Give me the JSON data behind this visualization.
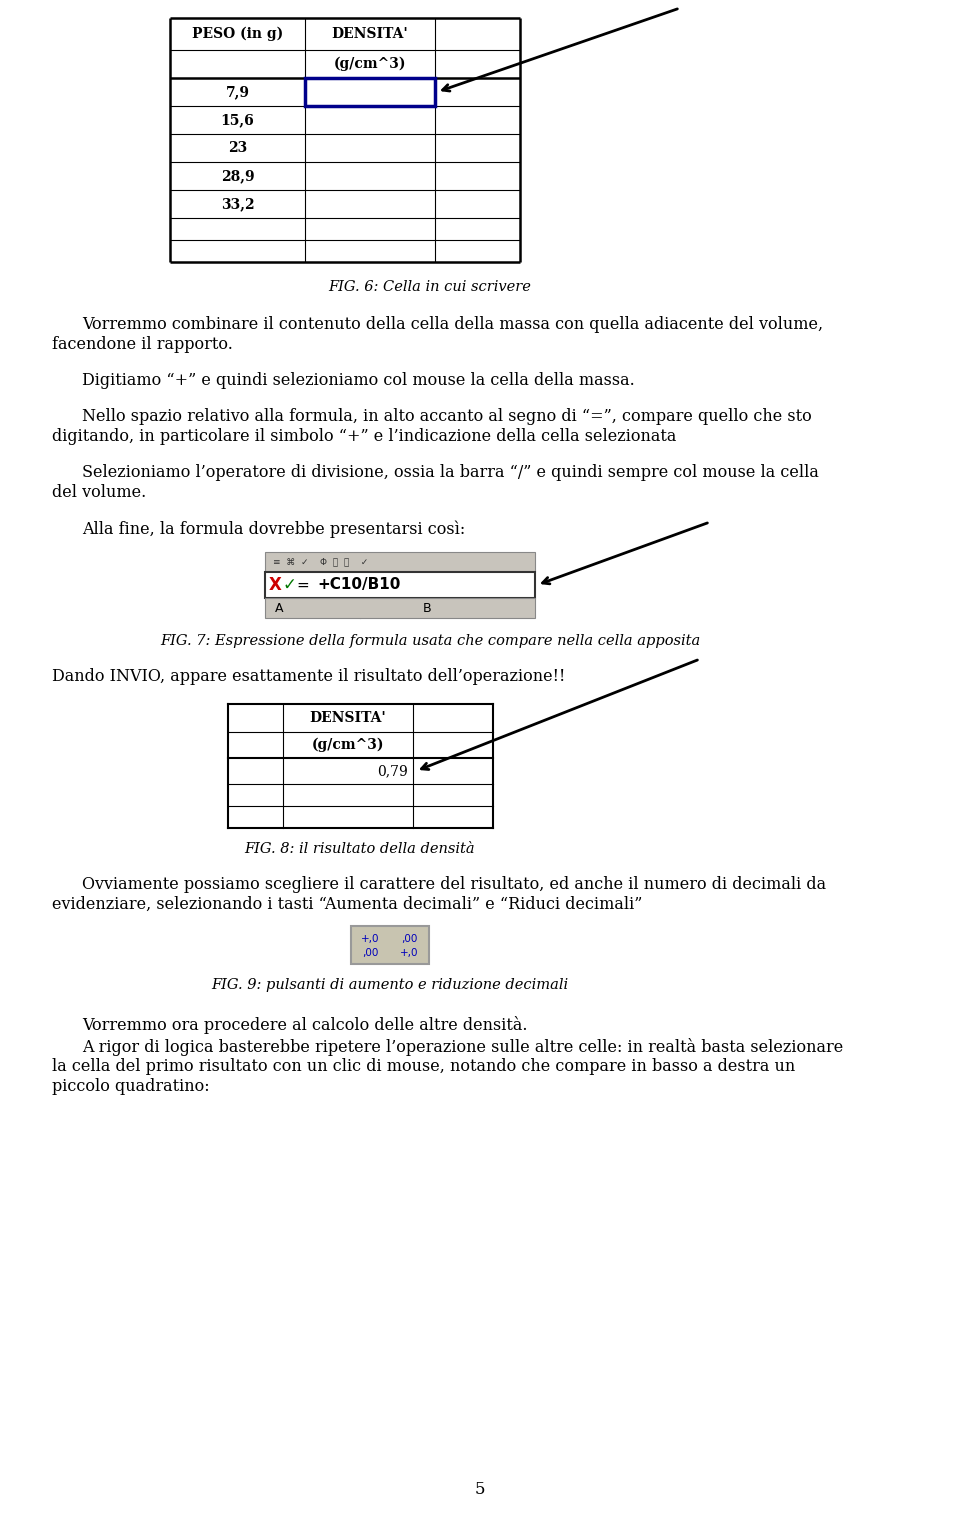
{
  "background_color": "#ffffff",
  "page_number": "5",
  "fig6_caption": "FIG. 6: Cella in cui scrivere",
  "fig7_caption": "FIG. 7: Espressione della formula usata che compare nella cella apposita",
  "fig8_caption": "FIG. 8: il risultato della densità",
  "fig9_caption": "FIG. 9: pulsanti di aumento e riduzione decimali",
  "text1a": "Vorremmo combinare il contenuto della cella della massa con quella adiacente del volume,",
  "text1b": "facendone il rapporto.",
  "text2": "Digitiamo “+” e quindi selezioniamo col mouse la cella della massa.",
  "text3a": "Nello spazio relativo alla formula, in alto accanto al segno di “=”, compare quello che sto",
  "text3b": "digitando, in particolare il simbolo “+” e l’indicazione della cella selezionata",
  "text4a": "Selezioniamo l’operatore di divisione, ossia la barra “/” e quindi sempre col mouse la cella",
  "text4b": "del volume.",
  "text5": "Alla fine, la formula dovrebbe presentarsi così:",
  "text6": "Dando INVIO, appare esattamente il risultato dell’operazione!!",
  "text7a": "Ovviamente possiamo scegliere il carattere del risultato, ed anche il numero di decimali da",
  "text7b": "evidenziare, selezionando i tasti “Aumenta decimali” e “Riduci decimali”",
  "text8": "Vorremmo ora procedere al calcolo delle altre densità.",
  "text9a": "A rigor di logica basterebbe ripetere l’operazione sulle altre celle: in realtà basta selezionare",
  "text9b": "la cella del primo risultato con un clic di mouse, notando che compare in basso a destra un",
  "text9c": "piccolo quadratino:",
  "peso_label": "PESO (in g)",
  "densita_label": "DENSITA'",
  "gcm3_label": "(g/cm^3)",
  "values_fig6": [
    "7,9",
    "15,6",
    "23",
    "28,9",
    "33,2"
  ],
  "formula_text": "+C10/B10",
  "result_value": "0,79"
}
